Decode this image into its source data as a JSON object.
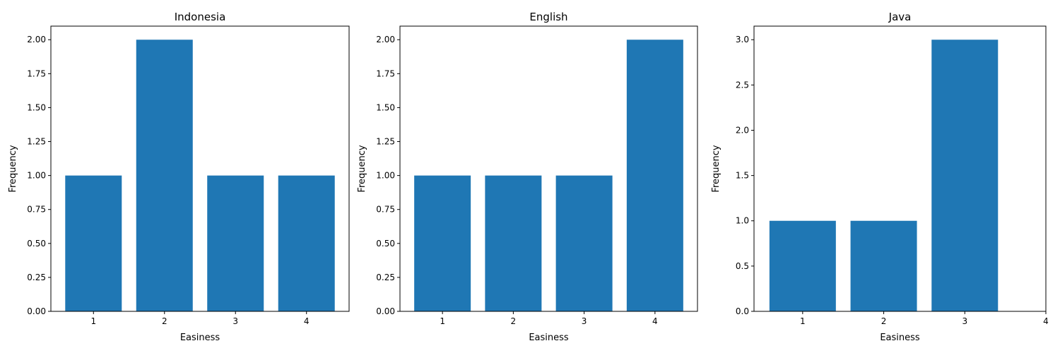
{
  "chart_data": [
    {
      "type": "bar",
      "title": "Indonesia",
      "xlabel": "Easiness",
      "ylabel": "Frequency",
      "categories": [
        "1",
        "2",
        "3",
        "4"
      ],
      "values": [
        1,
        2,
        1,
        1
      ],
      "xlim": [
        0.4,
        4.6
      ],
      "ylim": [
        0,
        2.1
      ],
      "yticks": [
        "0.00",
        "0.25",
        "0.50",
        "0.75",
        "1.00",
        "1.25",
        "1.50",
        "1.75",
        "2.00"
      ],
      "xticks": [
        "1",
        "2",
        "3",
        "4"
      ],
      "bar_color": "#1f77b4",
      "grid": false
    },
    {
      "type": "bar",
      "title": "English",
      "xlabel": "Easiness",
      "ylabel": "Frequency",
      "categories": [
        "1",
        "2",
        "3",
        "4"
      ],
      "values": [
        1,
        1,
        1,
        2
      ],
      "xlim": [
        0.4,
        4.6
      ],
      "ylim": [
        0,
        2.1
      ],
      "yticks": [
        "0.00",
        "0.25",
        "0.50",
        "0.75",
        "1.00",
        "1.25",
        "1.50",
        "1.75",
        "2.00"
      ],
      "xticks": [
        "1",
        "2",
        "3",
        "4"
      ],
      "bar_color": "#1f77b4",
      "grid": false
    },
    {
      "type": "bar",
      "title": "Java",
      "xlabel": "Easiness",
      "ylabel": "Frequency",
      "categories": [
        "1",
        "2",
        "3"
      ],
      "values": [
        1,
        1,
        3
      ],
      "xlim": [
        0.4,
        4.0
      ],
      "ylim": [
        0,
        3.15
      ],
      "yticks": [
        "0.0",
        "0.5",
        "1.0",
        "1.5",
        "2.0",
        "2.5",
        "3.0"
      ],
      "xticks": [
        "1",
        "2",
        "3",
        "4"
      ],
      "bar_color": "#1f77b4",
      "grid": false
    }
  ]
}
